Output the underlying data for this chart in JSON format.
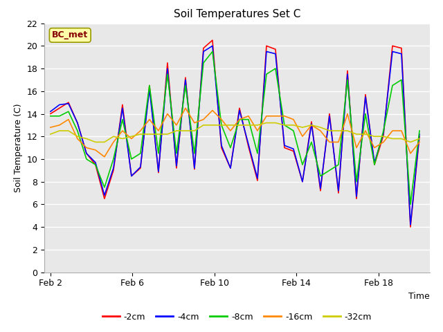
{
  "title": "Soil Temperatures Set C",
  "xlabel": "Time",
  "ylabel": "Soil Temperature (C)",
  "ylim": [
    0,
    22
  ],
  "yticks": [
    0,
    2,
    4,
    6,
    8,
    10,
    12,
    14,
    16,
    18,
    20,
    22
  ],
  "xtick_labels": [
    "Feb 2",
    "Feb 6",
    "Feb 10",
    "Feb 14",
    "Feb 18"
  ],
  "xtick_positions": [
    0,
    4,
    8,
    12,
    16
  ],
  "xlim": [
    -0.3,
    18.5
  ],
  "annotation_text": "BC_met",
  "fig_color": "#ffffff",
  "plot_bg_color": "#e8e8e8",
  "legend_entries": [
    "-2cm",
    "-4cm",
    "-8cm",
    "-16cm",
    "-32cm"
  ],
  "line_colors": [
    "#ff0000",
    "#0000ff",
    "#00cc00",
    "#ff8800",
    "#cccc00"
  ],
  "line_width": 1.2,
  "series": {
    "cm2": [
      14.0,
      14.5,
      15.0,
      13.2,
      10.5,
      9.5,
      6.5,
      9.0,
      14.8,
      8.5,
      9.2,
      16.5,
      8.8,
      18.5,
      9.2,
      17.2,
      9.1,
      19.8,
      20.5,
      11.0,
      9.2,
      14.5,
      11.1,
      8.1,
      20.0,
      19.7,
      11.0,
      10.7,
      8.0,
      13.3,
      7.2,
      14.0,
      7.0,
      17.8,
      6.5,
      15.7,
      9.5,
      12.1,
      20.0,
      19.8,
      4.0,
      12.0
    ],
    "cm4": [
      14.2,
      14.8,
      14.9,
      13.2,
      10.5,
      9.7,
      6.8,
      9.2,
      14.5,
      8.5,
      9.3,
      16.2,
      8.9,
      18.0,
      9.4,
      17.0,
      9.2,
      19.5,
      20.0,
      11.2,
      9.2,
      14.3,
      11.3,
      8.3,
      19.5,
      19.3,
      11.2,
      10.9,
      8.0,
      13.1,
      7.4,
      13.8,
      7.2,
      17.5,
      6.7,
      15.5,
      9.7,
      12.3,
      19.5,
      19.3,
      4.2,
      12.2
    ],
    "cm8": [
      13.8,
      13.8,
      14.2,
      12.5,
      10.0,
      9.5,
      7.5,
      10.0,
      13.5,
      10.0,
      10.5,
      16.5,
      10.5,
      17.5,
      10.5,
      16.5,
      10.5,
      18.5,
      19.5,
      13.0,
      11.0,
      13.5,
      13.5,
      10.5,
      17.5,
      18.0,
      13.0,
      12.5,
      9.5,
      11.5,
      8.5,
      9.0,
      9.5,
      17.0,
      8.0,
      14.0,
      9.5,
      12.5,
      16.5,
      17.0,
      6.0,
      12.5
    ],
    "cm16": [
      12.8,
      13.0,
      13.5,
      11.8,
      11.0,
      10.8,
      10.2,
      11.5,
      12.5,
      11.8,
      12.5,
      13.5,
      12.5,
      14.0,
      13.0,
      14.5,
      13.2,
      13.5,
      14.3,
      13.5,
      12.5,
      13.5,
      13.8,
      12.5,
      13.8,
      13.8,
      13.8,
      13.5,
      12.0,
      13.0,
      12.5,
      11.5,
      11.5,
      14.0,
      11.0,
      12.5,
      11.0,
      11.5,
      12.5,
      12.5,
      10.5,
      11.5
    ],
    "cm32": [
      12.2,
      12.5,
      12.5,
      12.0,
      11.8,
      11.5,
      11.5,
      12.0,
      11.8,
      12.0,
      12.2,
      12.2,
      12.2,
      12.2,
      12.5,
      12.5,
      12.5,
      13.0,
      13.0,
      13.0,
      13.0,
      13.0,
      13.0,
      13.0,
      13.2,
      13.2,
      13.0,
      13.0,
      12.8,
      13.0,
      12.8,
      12.5,
      12.5,
      12.5,
      12.2,
      12.2,
      12.0,
      12.0,
      11.8,
      11.8,
      11.5,
      11.8
    ]
  }
}
